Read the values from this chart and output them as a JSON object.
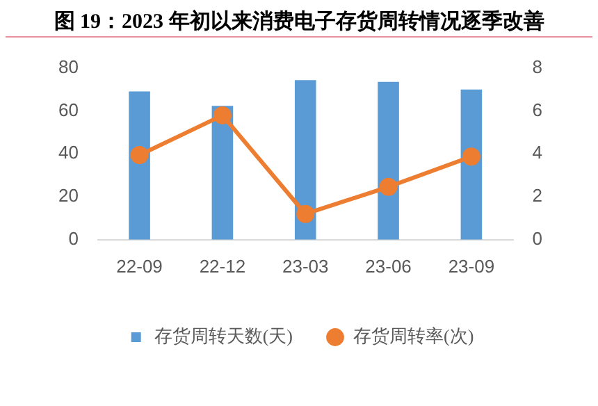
{
  "chart_data": {
    "type": "bar",
    "title": "图 19：2023 年初以来消费电子存货周转情况逐季改善",
    "categories": [
      "22-09",
      "22-12",
      "23-03",
      "23-06",
      "23-09"
    ],
    "series": [
      {
        "name": "存货周转天数(天)",
        "color": "#5b9bd5",
        "values": [
          69,
          62.3,
          74.3,
          73.5,
          69.9
        ]
      },
      {
        "name": "存货周转率(次)",
        "type": "line",
        "axis": "y2",
        "color": "#ed7d31",
        "values": [
          3.94,
          5.79,
          1.2,
          2.46,
          3.87
        ],
        "marker": "circle"
      }
    ],
    "ylim": [
      0,
      80
    ],
    "yticks": [
      0,
      20,
      40,
      60,
      80
    ],
    "y2lim": [
      0,
      8
    ],
    "y2ticks": [
      0,
      2,
      4,
      6,
      8
    ],
    "grid": false,
    "legend": "bottom"
  }
}
